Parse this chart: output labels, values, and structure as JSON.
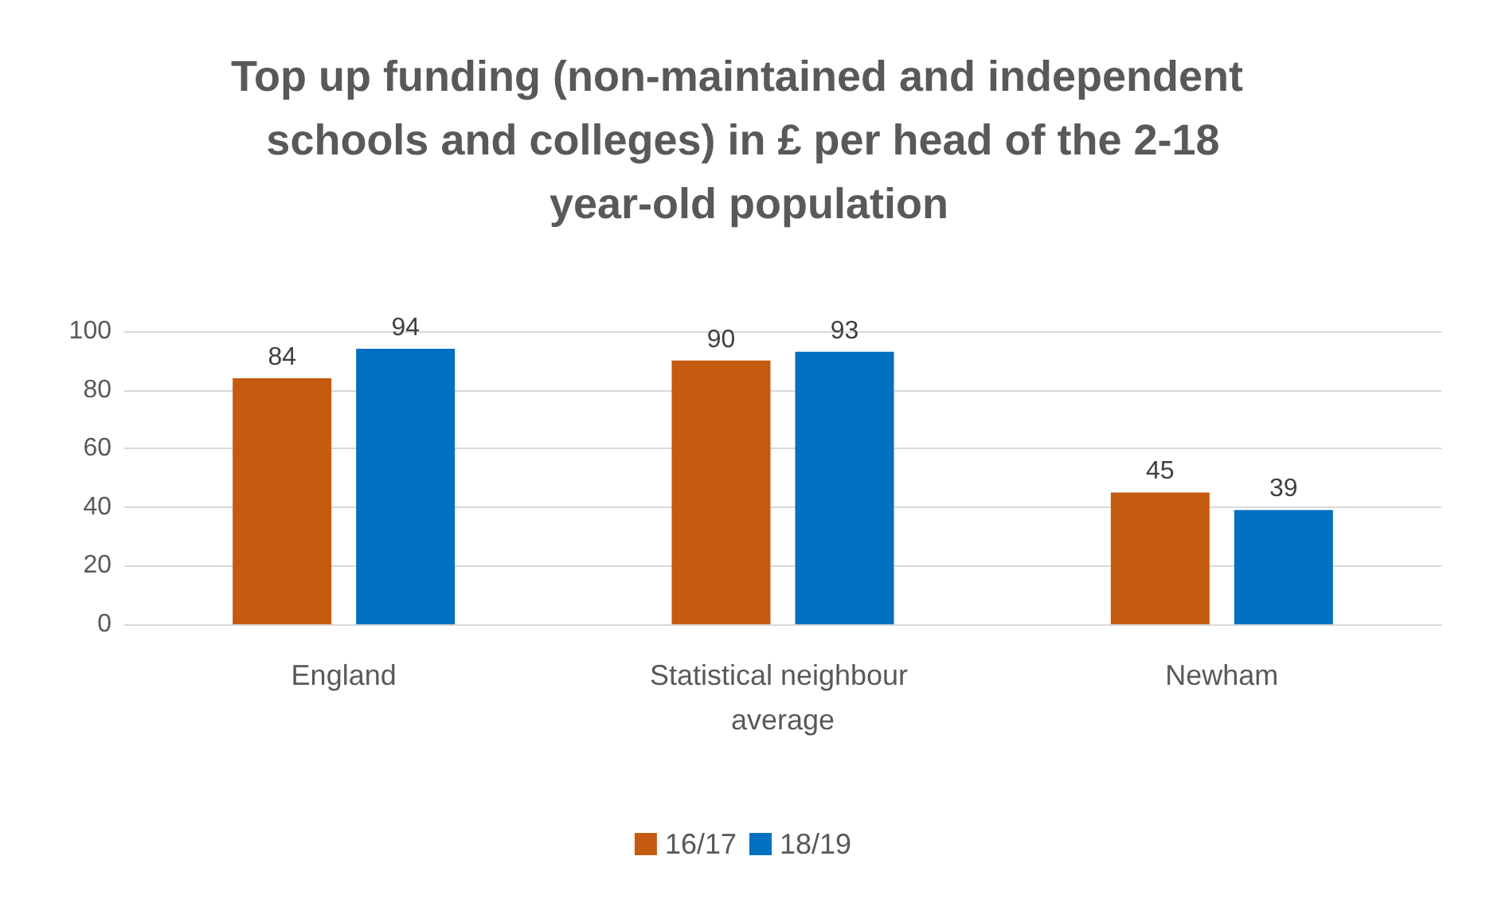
{
  "chart_data": {
    "type": "bar",
    "title": "Top up funding (non-maintained and independent schools and colleges) in £ per head of the 2-18 year-old population",
    "categories": [
      "England",
      "Statistical neighbour average",
      "Newham"
    ],
    "series": [
      {
        "name": "16/17",
        "color": "#c55a11",
        "values": [
          84,
          90,
          45
        ]
      },
      {
        "name": "18/19",
        "color": "#0070c0",
        "values": [
          94,
          93,
          39
        ]
      }
    ],
    "ylim": [
      0,
      100
    ],
    "yticks": [
      0,
      20,
      40,
      60,
      80,
      100
    ],
    "grid": "y",
    "data_labels": true,
    "legend": "bottom"
  }
}
